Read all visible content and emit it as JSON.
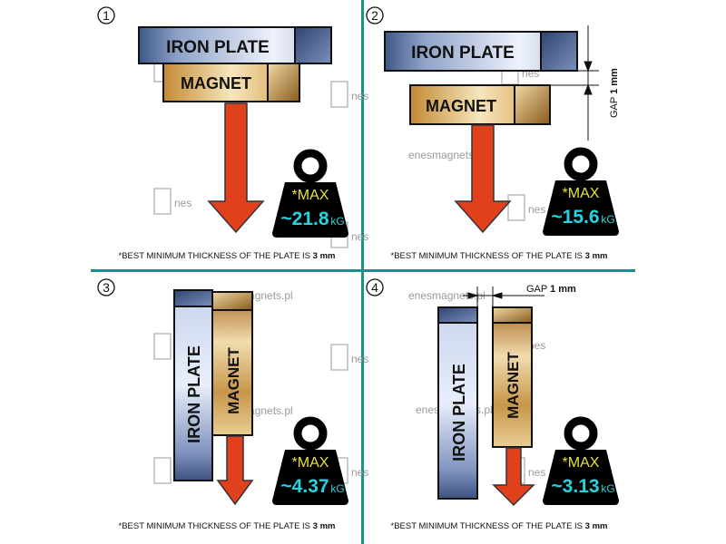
{
  "colors": {
    "divider": "#17918b",
    "max": "#e8e23a",
    "value": "#27d3e0",
    "arrow": "#e0401c"
  },
  "watermark": {
    "url": "enesmagnets.pl",
    "logo": "Enes"
  },
  "panels": [
    {
      "number": "1",
      "plate": "IRON PLATE",
      "magnet": "MAGNET",
      "max": "*MAX",
      "value": "~21.8",
      "unit": "kG",
      "note": "*BEST MINIMUM THICKNESS OF THE PLATE IS ",
      "note_bold": "3 mm"
    },
    {
      "number": "2",
      "plate": "IRON PLATE",
      "magnet": "MAGNET",
      "gap": "GAP",
      "gap_value": "1 mm",
      "max": "*MAX",
      "value": "~15.6",
      "unit": "kG",
      "note": "*BEST MINIMUM THICKNESS OF THE PLATE IS ",
      "note_bold": "3 mm"
    },
    {
      "number": "3",
      "plate": "IRON  PLATE",
      "magnet": "MAGNET",
      "max": "*MAX",
      "value": "~4.37",
      "unit": "kG",
      "note": "*BEST MINIMUM THICKNESS OF THE PLATE IS ",
      "note_bold": "3 mm"
    },
    {
      "number": "4",
      "plate": "IRON PLATE",
      "magnet": "MAGNET",
      "gap": "GAP",
      "gap_value": "1 mm",
      "max": "*MAX",
      "value": "~3.13",
      "unit": "kG",
      "note": "*BEST MINIMUM THICKNESS OF THE PLATE IS ",
      "note_bold": "3 mm"
    }
  ]
}
